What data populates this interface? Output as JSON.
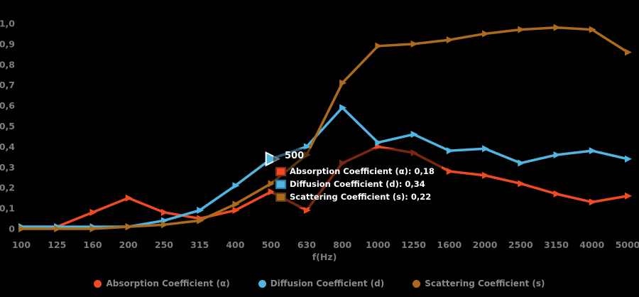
{
  "theme": {
    "background": "#000000",
    "axis_text_color": "#7d7d7d",
    "legend_text_color": "#8a8a8a",
    "tooltip_text_color": "#ffffff"
  },
  "chart_data": {
    "type": "line",
    "title": "",
    "xlabel": "f(Hz)",
    "ylabel": "",
    "ylim": [
      0,
      1.0
    ],
    "grid": false,
    "legend_position": "bottom-center",
    "y_ticks": [
      "0",
      "0,1",
      "0,2",
      "0,3",
      "0,4",
      "0,5",
      "0,6",
      "0,7",
      "0,8",
      "0,9",
      "1,0"
    ],
    "categories": [
      100,
      125,
      160,
      200,
      250,
      315,
      400,
      500,
      630,
      800,
      1000,
      1250,
      1600,
      2000,
      2500,
      3150,
      4000,
      5000
    ],
    "series": [
      {
        "name": "Absorption Coefficient (α)",
        "slug": "absorption",
        "color": "#F04A23",
        "values": [
          0.01,
          0.01,
          0.08,
          0.15,
          0.08,
          0.05,
          0.09,
          0.18,
          0.09,
          0.32,
          0.4,
          0.37,
          0.28,
          0.26,
          0.22,
          0.17,
          0.13,
          0.16
        ]
      },
      {
        "name": "Diffusion Coefficient (d)",
        "slug": "diffusion",
        "color": "#4FB6E3",
        "values": [
          0.01,
          0.01,
          0.01,
          0.01,
          0.04,
          0.09,
          0.21,
          0.34,
          0.4,
          0.59,
          0.42,
          0.46,
          0.38,
          0.39,
          0.32,
          0.36,
          0.38,
          0.34
        ]
      },
      {
        "name": "Scattering Coefficient (s)",
        "slug": "scattering",
        "color": "#AC6A1C",
        "values": [
          0.0,
          0.0,
          0.0,
          0.01,
          0.02,
          0.04,
          0.12,
          0.22,
          0.36,
          0.71,
          0.89,
          0.9,
          0.92,
          0.95,
          0.97,
          0.98,
          0.97,
          0.86
        ]
      }
    ],
    "highlight": {
      "category": "500",
      "category_index": 7,
      "series_index": 1
    }
  },
  "tooltip": {
    "title": "500",
    "rows": [
      {
        "text": "Absorption Coefficient (α): 0,18",
        "value": "0,18",
        "color": "#F04A23",
        "border": "#8E2B12"
      },
      {
        "text": "Diffusion Coefficient (d): 0,34",
        "value": "0,34",
        "color": "#4FB6E3",
        "border": "#2C7FA8"
      },
      {
        "text": "Scattering Coefficient (s): 0,22",
        "value": "0,22",
        "color": "#AC6A1C",
        "border": "#64400F"
      }
    ]
  },
  "legend": {
    "items": [
      {
        "label": "Absorption Coefficient (α)",
        "color": "#F04A23"
      },
      {
        "label": "Diffusion Coefficient (d)",
        "color": "#4FB6E3"
      },
      {
        "label": "Scattering Coefficient (s)",
        "color": "#AC6A1C"
      }
    ]
  }
}
